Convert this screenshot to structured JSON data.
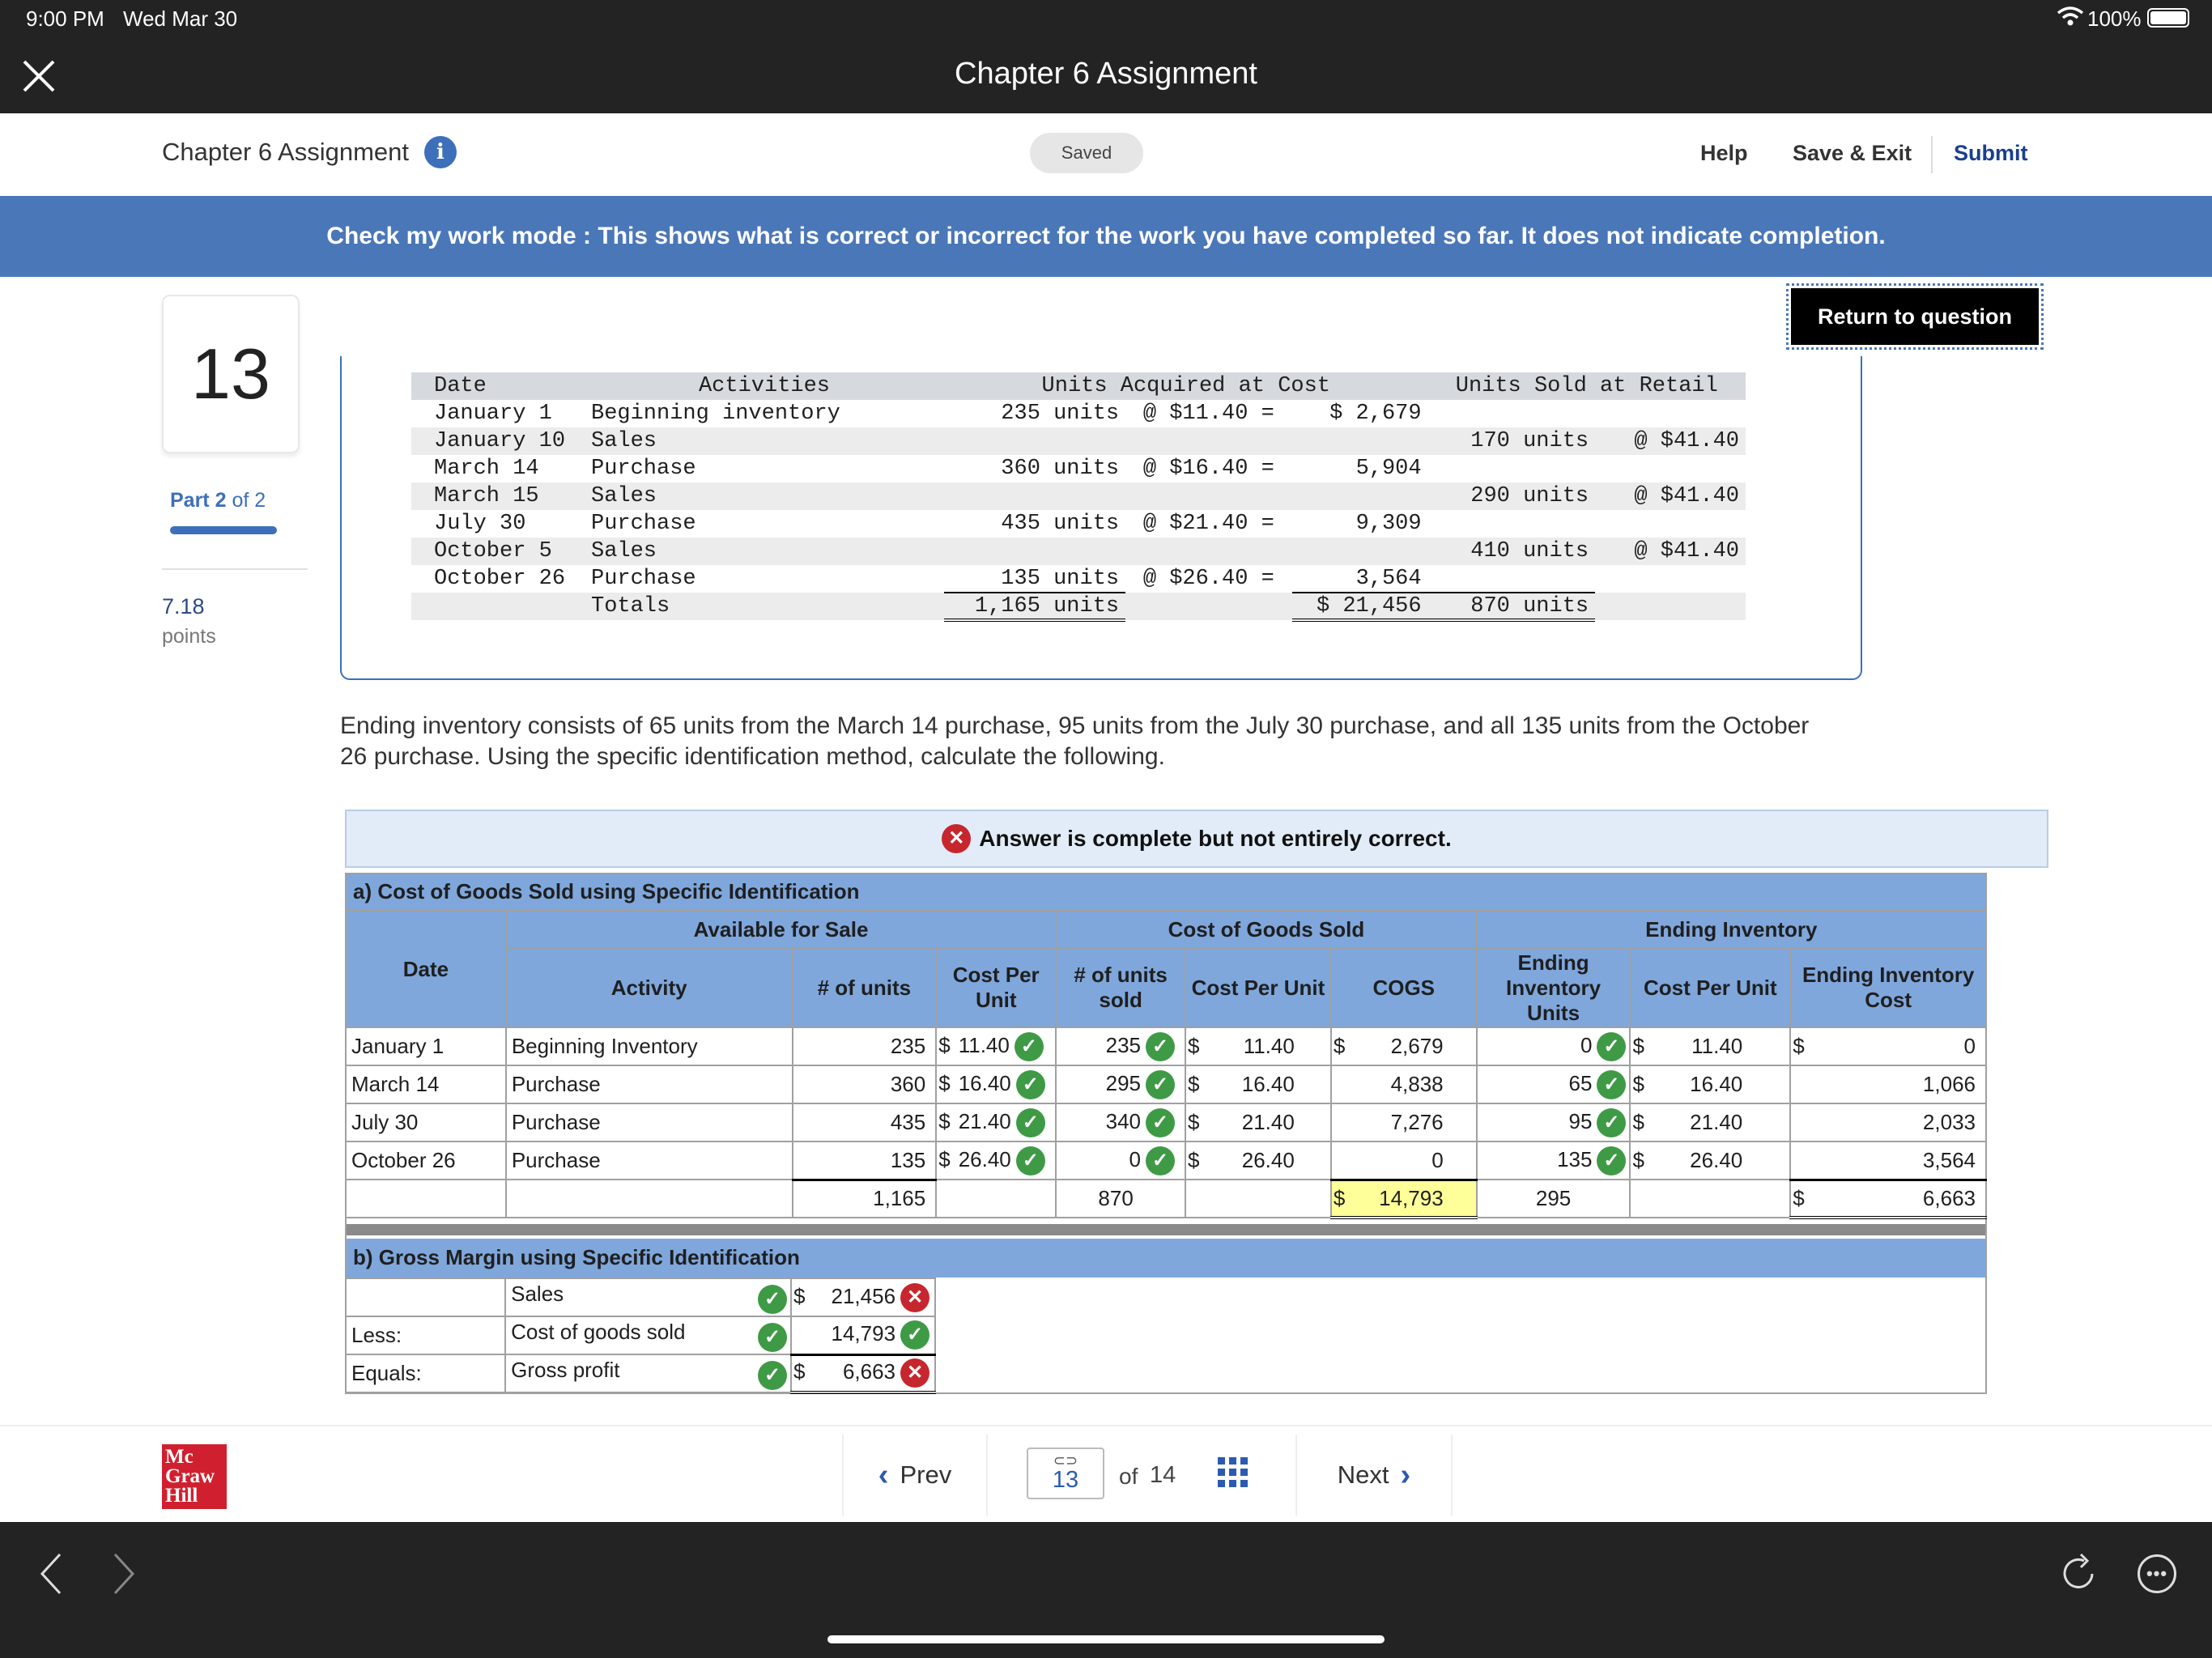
{
  "status_bar": {
    "time": "9:00 PM",
    "date": "Wed Mar 30",
    "battery": "100%"
  },
  "title_bar": {
    "title": "Chapter 6 Assignment"
  },
  "header": {
    "assignment_title": "Chapter 6 Assignment",
    "saved": "Saved",
    "help": "Help",
    "save_exit": "Save & Exit",
    "submit": "Submit"
  },
  "banner": {
    "text": "Check my work mode : This shows what is correct or incorrect for the work you have completed so far. It does not indicate completion."
  },
  "return_button": "Return to question",
  "sidebar": {
    "question_number": "13",
    "part_label": "Part 2",
    "part_of": "of 2",
    "points_value": "7.18",
    "points_label": "points"
  },
  "legacy_table": {
    "headers": [
      "Date",
      "Activities",
      "Units Acquired at Cost",
      "Units Sold at Retail"
    ],
    "rows": [
      {
        "date": "January 1",
        "activity": "Beginning inventory",
        "acq_units": "235 units",
        "acq_price": "@ $11.40 =",
        "acq_cost": "$ 2,679",
        "sold_units": "",
        "sold_price": ""
      },
      {
        "date": "January 10",
        "activity": "Sales",
        "acq_units": "",
        "acq_price": "",
        "acq_cost": "",
        "sold_units": "170 units",
        "sold_price": "@ $41.40"
      },
      {
        "date": "March 14",
        "activity": "Purchase",
        "acq_units": "360 units",
        "acq_price": "@ $16.40 =",
        "acq_cost": "5,904",
        "sold_units": "",
        "sold_price": ""
      },
      {
        "date": "March 15",
        "activity": "Sales",
        "acq_units": "",
        "acq_price": "",
        "acq_cost": "",
        "sold_units": "290 units",
        "sold_price": "@ $41.40"
      },
      {
        "date": "July 30",
        "activity": "Purchase",
        "acq_units": "435 units",
        "acq_price": "@ $21.40 =",
        "acq_cost": "9,309",
        "sold_units": "",
        "sold_price": ""
      },
      {
        "date": "October 5",
        "activity": "Sales",
        "acq_units": "",
        "acq_price": "",
        "acq_cost": "",
        "sold_units": "410 units",
        "sold_price": "@ $41.40"
      },
      {
        "date": "October 26",
        "activity": "Purchase",
        "acq_units": "135 units",
        "acq_price": "@ $26.40 =",
        "acq_cost": "3,564",
        "sold_units": "",
        "sold_price": ""
      }
    ],
    "totals": {
      "label": "Totals",
      "units": "1,165 units",
      "cost": "$ 21,456",
      "sold": "870 units"
    }
  },
  "prompt": "Ending inventory consists of 65 units from the March 14 purchase, 95 units from the July 30 purchase, and all 135 units from the October 26 purchase. Using the specific identification method, calculate the following.",
  "answer_status": "Answer is complete but not entirely correct.",
  "section_a": {
    "title": "a) Cost of Goods Sold using Specific Identification",
    "group_headers": {
      "available": "Available for Sale",
      "cogs": "Cost of Goods Sold",
      "ending": "Ending Inventory"
    },
    "col_headers": {
      "date": "Date",
      "activity": "Activity",
      "units": "# of units",
      "cost_per_unit": "Cost Per Unit",
      "units_sold": "# of units sold",
      "cogs_cpu": "Cost Per Unit",
      "cogs": "COGS",
      "end_units": "Ending Inventory Units",
      "end_cpu": "Cost Per Unit",
      "end_cost": "Ending Inventory Cost"
    },
    "rows": [
      {
        "date": "January 1",
        "activity": "Beginning Inventory",
        "units": "235",
        "cpu": "11.40",
        "sold": "235",
        "sold_cpu": "11.40",
        "cogs": "2,679",
        "end_units": "0",
        "end_cpu": "11.40",
        "end_cost": "0"
      },
      {
        "date": "March 14",
        "activity": "Purchase",
        "units": "360",
        "cpu": "16.40",
        "sold": "295",
        "sold_cpu": "16.40",
        "cogs": "4,838",
        "end_units": "65",
        "end_cpu": "16.40",
        "end_cost": "1,066"
      },
      {
        "date": "July 30",
        "activity": "Purchase",
        "units": "435",
        "cpu": "21.40",
        "sold": "340",
        "sold_cpu": "21.40",
        "cogs": "7,276",
        "end_units": "95",
        "end_cpu": "21.40",
        "end_cost": "2,033"
      },
      {
        "date": "October 26",
        "activity": "Purchase",
        "units": "135",
        "cpu": "26.40",
        "sold": "0",
        "sold_cpu": "26.40",
        "cogs": "0",
        "end_units": "135",
        "end_cpu": "26.40",
        "end_cost": "3,564"
      }
    ],
    "totals": {
      "units": "1,165",
      "sold": "870",
      "cogs": "14,793",
      "end_units": "295",
      "end_cost": "6,663"
    }
  },
  "section_b": {
    "title": "b) Gross Margin using Specific Identification",
    "rows": [
      {
        "prefix": "",
        "label": "Sales",
        "value": "21,456",
        "dollar": "$"
      },
      {
        "prefix": "Less:",
        "label": "Cost of goods sold",
        "value": "14,793",
        "dollar": ""
      },
      {
        "prefix": "Equals:",
        "label": "Gross profit",
        "value": "6,663",
        "dollar": "$"
      }
    ]
  },
  "pagination": {
    "prev": "Prev",
    "current": "13",
    "of": "of",
    "total": "14",
    "next": "Next"
  },
  "logo": {
    "line1": "Mc",
    "line2": "Graw",
    "line3": "Hill"
  },
  "dollar": "$",
  "colors": {
    "banner": "#4a77b8",
    "table_header": "#7fa7dc",
    "correct": "#3f9a46",
    "incorrect": "#c6262e",
    "highlight": "#ffff99"
  }
}
